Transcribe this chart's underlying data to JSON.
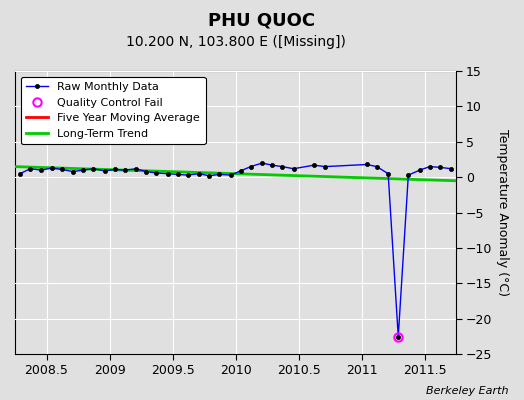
{
  "title": "PHU QUOC",
  "subtitle": "10.200 N, 103.800 E ([Missing])",
  "ylabel": "Temperature Anomaly (°C)",
  "watermark": "Berkeley Earth",
  "xlim": [
    2008.25,
    2011.75
  ],
  "ylim": [
    -25,
    15
  ],
  "yticks": [
    -25,
    -20,
    -15,
    -10,
    -5,
    0,
    5,
    10,
    15
  ],
  "xticks": [
    2008.5,
    2009.0,
    2009.5,
    2010.0,
    2010.5,
    2011.0,
    2011.5
  ],
  "background_color": "#e0e0e0",
  "plot_bg_color": "#e0e0e0",
  "grid_color": "#ffffff",
  "raw_x": [
    2008.29,
    2008.37,
    2008.46,
    2008.54,
    2008.62,
    2008.71,
    2008.79,
    2008.87,
    2008.96,
    2009.04,
    2009.12,
    2009.21,
    2009.29,
    2009.37,
    2009.46,
    2009.54,
    2009.62,
    2009.71,
    2009.79,
    2009.87,
    2009.96,
    2010.04,
    2010.12,
    2010.21,
    2010.29,
    2010.37,
    2010.46,
    2010.62,
    2010.71,
    2011.04,
    2011.12,
    2011.21,
    2011.29,
    2011.37,
    2011.46,
    2011.54,
    2011.62,
    2011.71
  ],
  "raw_y": [
    0.5,
    1.2,
    1.0,
    1.3,
    1.1,
    0.8,
    1.0,
    1.2,
    0.9,
    1.1,
    1.0,
    1.2,
    0.8,
    0.6,
    0.5,
    0.4,
    0.3,
    0.5,
    0.2,
    0.4,
    0.3,
    0.9,
    1.5,
    2.0,
    1.7,
    1.5,
    1.2,
    1.7,
    1.5,
    1.8,
    1.5,
    0.5,
    -22.5,
    0.3,
    1.0,
    1.5,
    1.4,
    1.2
  ],
  "raw_color": "#0000ff",
  "raw_marker_size": 3,
  "raw_linewidth": 1.0,
  "qc_fail_x": [
    2011.29
  ],
  "qc_fail_y": [
    -22.5
  ],
  "qc_color": "#ff00ff",
  "trend_x": [
    2008.25,
    2011.75
  ],
  "trend_y": [
    1.5,
    -0.5
  ],
  "trend_color": "#00cc00",
  "trend_linewidth": 2.0,
  "ma_color": "#ff0000",
  "ma_linewidth": 2.0,
  "title_fontsize": 13,
  "subtitle_fontsize": 10,
  "tick_fontsize": 9,
  "ylabel_fontsize": 9
}
